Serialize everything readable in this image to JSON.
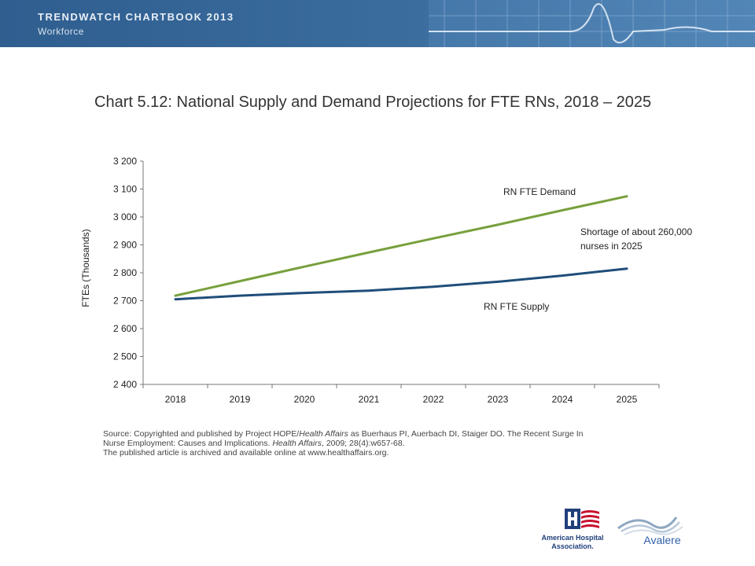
{
  "header": {
    "title": "TRENDWATCH CHARTBOOK 2013",
    "subtitle": "Workforce"
  },
  "chart_data": {
    "type": "line",
    "title": "Chart 5.12: National Supply and Demand Projections for FTE RNs, 2018 – 2025",
    "xlabel": "",
    "ylabel": "FTEs (Thousands)",
    "categories": [
      "2018",
      "2019",
      "2020",
      "2021",
      "2022",
      "2023",
      "2024",
      "2025"
    ],
    "ylim": [
      2400,
      3200
    ],
    "yticks": [
      2400,
      2500,
      2600,
      2700,
      2800,
      2900,
      3000,
      3100,
      3200
    ],
    "ytick_labels": [
      "2 400",
      "2 500",
      "2 600",
      "2 700",
      "2 800",
      "2 900",
      "3 000",
      "3 100",
      "3 200"
    ],
    "grid": false,
    "legend": "none",
    "series": [
      {
        "name": "RN FTE Demand",
        "color": "#77a03c",
        "values": [
          2718,
          2770,
          2822,
          2873,
          2923,
          2972,
          3024,
          3074
        ]
      },
      {
        "name": "RN FTE Supply",
        "color": "#1f4e7a",
        "values": [
          2705,
          2718,
          2728,
          2736,
          2750,
          2768,
          2790,
          2815
        ]
      }
    ],
    "annotations": [
      {
        "text_lines": [
          "Shortage of about  260,000",
          "nurses in 2025"
        ]
      }
    ]
  },
  "source": {
    "line1_pre": "Source: Copyrighted and published by Project HOPE/",
    "line1_italic": "Health Affairs",
    "line1_post": " as Buerhaus PI, Auerbach DI, Staiger DO. The Recent Surge In",
    "line2_pre": "Nurse Employment: Causes and Implications. ",
    "line2_italic": "Health Affairs",
    "line2_post": ", 2009; 28(4):w657-68.",
    "line3": "The published article is archived and available online at www.healthaffairs.org."
  },
  "logos": {
    "aha_line1": "American Hospital",
    "aha_line2": "Association.",
    "avalere": "Avalere"
  }
}
